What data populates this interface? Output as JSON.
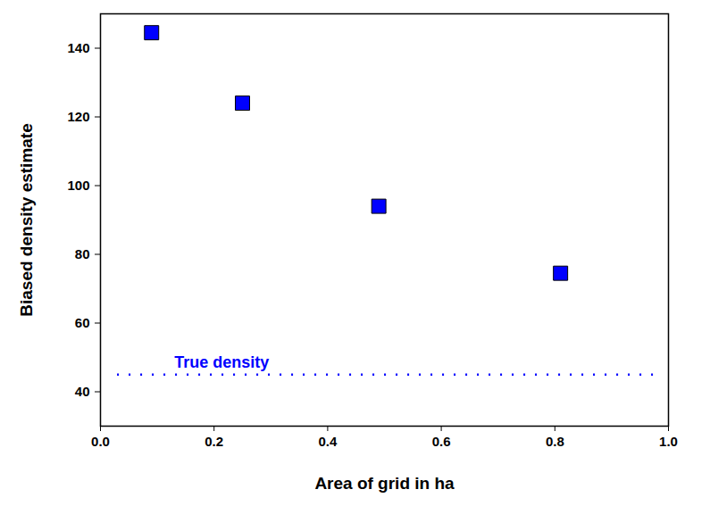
{
  "chart_data": {
    "type": "scatter",
    "x_label": "Area of grid in ha",
    "y_label": "Biased density estimate",
    "x": [
      0.09,
      0.25,
      0.49,
      0.81
    ],
    "values": [
      144.5,
      124,
      94,
      74.5
    ],
    "color": "#0000ff",
    "marker": "square",
    "xlim": [
      0,
      1
    ],
    "xticks": [
      {
        "value": 0,
        "label": "0.0"
      },
      0.2,
      0.4,
      0.6,
      0.8,
      {
        "value": 1,
        "label": "1.0"
      }
    ],
    "ylim": [
      30,
      150
    ],
    "yticks": [
      40,
      60,
      80,
      100,
      120,
      140
    ],
    "grid": false,
    "reference_line": {
      "y": 45,
      "label": "True density",
      "color": "#0000ff",
      "line_style": "dotted"
    }
  }
}
